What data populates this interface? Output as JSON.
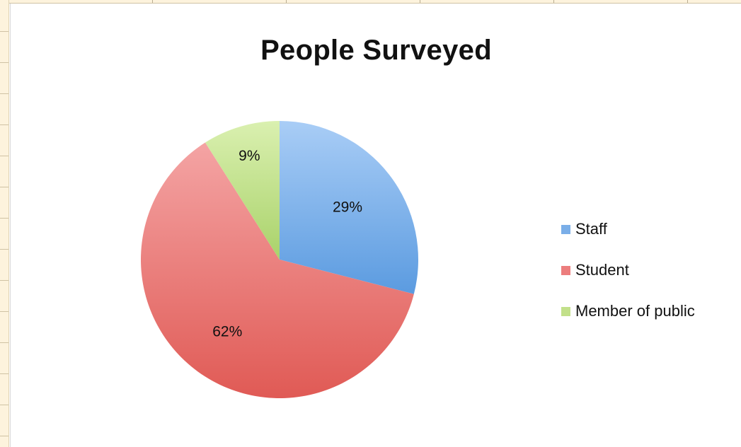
{
  "chart_data": {
    "type": "pie",
    "title": "People Surveyed",
    "categories": [
      "Staff",
      "Student",
      "Member of public"
    ],
    "values": [
      29,
      62,
      9
    ],
    "labels": [
      "29%",
      "62%",
      "9%"
    ],
    "colors": [
      "#7aaee8",
      "#ec7d7d",
      "#c2e08a"
    ],
    "gradients": [
      [
        "#a9cdf6",
        "#5b9be0"
      ],
      [
        "#f4a4a4",
        "#e05a55"
      ],
      [
        "#daf0b0",
        "#a9d26a"
      ]
    ],
    "legend_position": "right"
  }
}
